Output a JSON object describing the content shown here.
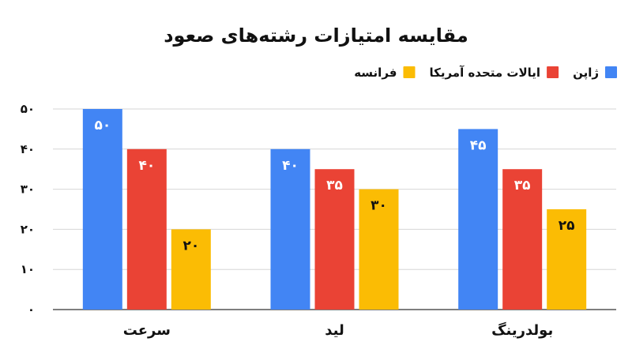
{
  "chart_data": {
    "type": "bar",
    "title": "مقایسه امتیازات رشته‌های صعود",
    "categories": [
      "بولدرینگ",
      "لید",
      "سرعت"
    ],
    "series": [
      {
        "name": "ژاپن",
        "color": "#4285f4",
        "label_color": "#ffffff",
        "values": [
          45,
          40,
          50
        ],
        "labels": [
          "۴۵",
          "۴۰",
          "۵۰"
        ]
      },
      {
        "name": "ایالات متحده آمریکا",
        "color": "#ea4335",
        "label_color": "#ffffff",
        "values": [
          35,
          35,
          40
        ],
        "labels": [
          "۳۵",
          "۳۵",
          "۴۰"
        ]
      },
      {
        "name": "فرانسه",
        "color": "#fbbc04",
        "label_color": "#111111",
        "values": [
          25,
          30,
          20
        ],
        "labels": [
          "۲۵",
          "۳۰",
          "۲۰"
        ]
      }
    ],
    "ylim": [
      0,
      50
    ],
    "yticks": [
      0,
      10,
      20,
      30,
      40,
      50
    ],
    "ytick_labels": [
      "۰",
      "۱۰",
      "۲۰",
      "۳۰",
      "۴۰",
      "۵۰"
    ],
    "grid": true,
    "legend_position": "top-right"
  }
}
